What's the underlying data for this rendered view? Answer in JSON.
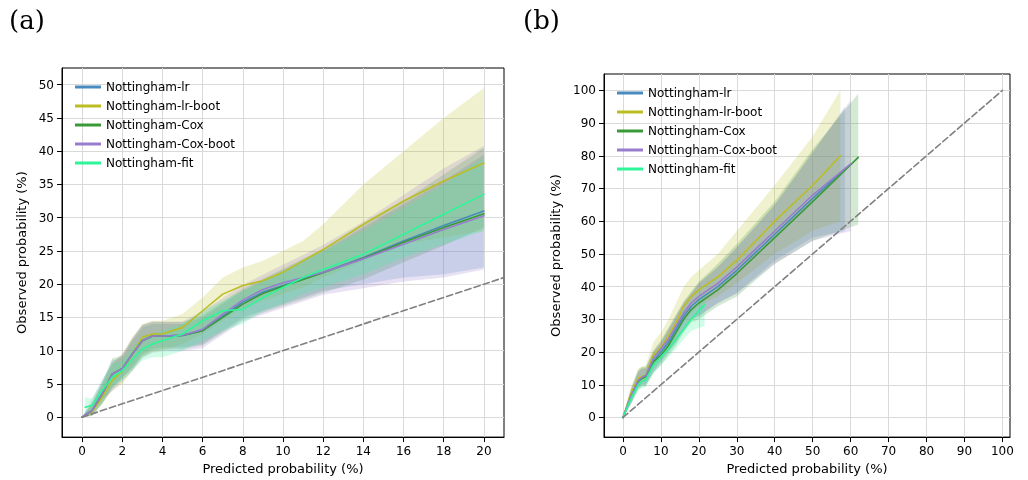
{
  "chart_data": [
    {
      "type": "line",
      "title": "(a)",
      "xlabel": "Predicted probability (%)",
      "ylabel": "Observed probability (%)",
      "xlim": [
        -1,
        21
      ],
      "ylim": [
        -3,
        52.5
      ],
      "xticks": [
        0,
        2,
        4,
        6,
        8,
        10,
        12,
        14,
        16,
        18,
        20
      ],
      "yticks": [
        0,
        5,
        10,
        15,
        20,
        25,
        30,
        35,
        40,
        45,
        50
      ],
      "grid": true,
      "legend": "top left",
      "marker": "none",
      "series": [
        {
          "name": "Nottingham-lr",
          "color": "#4a8bbf",
          "x": [
            0,
            0.5,
            1,
            1.5,
            2,
            2.5,
            3,
            3.5,
            4,
            5,
            6,
            7,
            8,
            9,
            10,
            11,
            12,
            14,
            16,
            18,
            20
          ],
          "values": [
            0,
            1,
            3.5,
            6.5,
            7.3,
            9.5,
            11.5,
            12.2,
            12.2,
            12.3,
            13,
            15.2,
            17.3,
            18.8,
            19.8,
            20.8,
            21.8,
            24,
            26.5,
            28.8,
            31
          ],
          "lower": [
            0,
            0.2,
            2,
            4.5,
            6,
            7.5,
            9.5,
            10.3,
            10.5,
            10.5,
            11,
            13,
            15,
            16,
            17,
            18,
            19,
            20,
            21,
            21.5,
            22.5
          ],
          "upper": [
            0,
            2,
            5,
            8.5,
            9,
            11.5,
            13.5,
            14,
            14,
            14,
            15,
            17,
            19,
            20.5,
            22,
            23.5,
            25,
            28.5,
            32,
            35.5,
            39.5
          ]
        },
        {
          "name": "Nottingham-lr-boot",
          "color": "#bcbd22",
          "x": [
            0,
            0.5,
            1,
            1.5,
            2,
            2.5,
            3,
            3.5,
            4,
            5,
            6,
            7,
            8,
            9,
            10,
            11,
            12,
            14,
            16,
            18,
            20
          ],
          "values": [
            0,
            0.8,
            3,
            5.5,
            7,
            9.5,
            12,
            12.5,
            12.5,
            13.5,
            16,
            18.5,
            19.8,
            20.5,
            21.8,
            23.5,
            25.2,
            29,
            32.5,
            35.5,
            38.2
          ],
          "lower": [
            0,
            0.2,
            2,
            4,
            5,
            7,
            9,
            9.8,
            10,
            11,
            12.5,
            14.5,
            16.5,
            17.5,
            18.5,
            19.5,
            21,
            23.5,
            26,
            27,
            28
          ],
          "upper": [
            0,
            2,
            5,
            8,
            9.5,
            12,
            14,
            14.5,
            14.5,
            15.5,
            18,
            21,
            22.5,
            23.5,
            25,
            26.5,
            29,
            35,
            40,
            45,
            49.5
          ]
        },
        {
          "name": "Nottingham-Cox",
          "color": "#3a9a3a",
          "x": [
            0,
            0.5,
            1,
            1.5,
            2,
            2.5,
            3,
            3.5,
            4,
            5,
            6,
            7,
            8,
            9,
            10,
            11,
            12,
            14,
            16,
            18,
            20
          ],
          "values": [
            0,
            1,
            3.5,
            6.5,
            7.3,
            9.5,
            11.5,
            12.2,
            12.2,
            12.3,
            13,
            15,
            17,
            18.6,
            19.7,
            20.7,
            21.7,
            23.9,
            26.3,
            28.5,
            30.6
          ],
          "lower": [
            0,
            0.2,
            2,
            4.3,
            5.8,
            7.3,
            9.2,
            10,
            10.2,
            10.2,
            10.8,
            12.7,
            14.7,
            15.7,
            16.7,
            17.7,
            18.7,
            20.7,
            23.3,
            25.8,
            28.5
          ],
          "upper": [
            0,
            2.2,
            5.3,
            8.8,
            9.3,
            11.8,
            13.8,
            14.3,
            14.3,
            14.3,
            15.3,
            17.3,
            19.3,
            20.8,
            22.3,
            23.8,
            25.3,
            28.8,
            32.5,
            36.5,
            40.5
          ]
        },
        {
          "name": "Nottingham-Cox-boot",
          "color": "#9a7ccf",
          "x": [
            0,
            0.5,
            1,
            1.5,
            2,
            2.5,
            3,
            3.5,
            4,
            5,
            6,
            7,
            8,
            9,
            10,
            11,
            12,
            14,
            16,
            18,
            20
          ],
          "values": [
            0,
            1,
            3.5,
            6.5,
            7.3,
            9.5,
            11.5,
            12.2,
            12.2,
            12.3,
            13.2,
            15.5,
            17.6,
            19.2,
            20.2,
            21,
            21.8,
            23.8,
            26,
            28.2,
            30.3
          ],
          "lower": [
            0,
            0.9,
            2.6,
            3.9,
            5.4,
            6.9,
            8.9,
            9.7,
            9.9,
            9.9,
            10.4,
            12.4,
            14.4,
            15.4,
            16.4,
            17.4,
            18.4,
            19.4,
            20.4,
            21,
            22.2
          ],
          "upper": [
            0,
            2.8,
            5.6,
            8.1,
            9.4,
            11.9,
            13.9,
            14.4,
            14.4,
            14.4,
            15.9,
            17.9,
            19.9,
            21.4,
            22.9,
            24.4,
            25.9,
            29.4,
            33.4,
            37.4,
            40.8
          ]
        },
        {
          "name": "Nottingham-fit",
          "color": "#2ef598",
          "x": [
            0.15,
            0.5,
            1,
            1.5,
            2,
            2.5,
            3,
            3.5,
            4,
            5,
            6,
            7,
            8,
            9,
            10,
            11,
            12,
            14,
            16,
            18,
            20
          ],
          "values": [
            1.5,
            1.8,
            4,
            6,
            7,
            8.7,
            10.2,
            11,
            11.5,
            12.5,
            14.5,
            16,
            16.2,
            18,
            19.5,
            21,
            22.2,
            24.5,
            27.5,
            30.5,
            33.5
          ],
          "lower": [
            0.5,
            0.8,
            2.5,
            4.5,
            5.5,
            7,
            8.5,
            9,
            9,
            10,
            11.5,
            13,
            14,
            16,
            17,
            18.5,
            19.5,
            21.5,
            24,
            26,
            28
          ],
          "upper": [
            3,
            2.8,
            5.5,
            8,
            8.5,
            10.5,
            12,
            12.5,
            13,
            14,
            16,
            17.5,
            19,
            20.5,
            22,
            23.5,
            25,
            28,
            31.5,
            35,
            39
          ]
        },
        {
          "color": "#808080",
          "line_style": "dashed",
          "x": [
            0,
            21
          ],
          "values": [
            0,
            21
          ]
        }
      ]
    },
    {
      "type": "line",
      "title": "(b)",
      "xlabel": "Predicted probability (%)",
      "ylabel": "Observed probability (%)",
      "xlim": [
        -5,
        102
      ],
      "ylim": [
        -6,
        105
      ],
      "xticks": [
        0,
        10,
        20,
        30,
        40,
        50,
        60,
        70,
        80,
        90,
        100
      ],
      "yticks": [
        0,
        10,
        20,
        30,
        40,
        50,
        60,
        70,
        80,
        90,
        100
      ],
      "grid": true,
      "legend": "top left",
      "marker": "none",
      "series": [
        {
          "name": "Nottingham-lr",
          "color": "#4a8bbf",
          "x": [
            0,
            2,
            4,
            5,
            6,
            8,
            10,
            12,
            14,
            16,
            18,
            20,
            25,
            30,
            40,
            50,
            58.5
          ],
          "values": [
            0,
            6,
            11,
            12,
            12.5,
            17,
            20,
            23,
            27,
            31,
            34,
            36,
            40,
            45,
            56,
            67,
            76
          ],
          "lower": [
            0,
            4,
            9,
            10,
            10,
            14,
            17,
            20,
            23,
            27,
            30,
            31,
            35,
            38,
            48,
            55,
            57
          ],
          "upper": [
            0,
            8,
            14,
            15,
            15,
            20,
            23,
            27,
            31,
            35,
            38,
            41,
            46,
            52,
            65,
            81,
            95
          ]
        },
        {
          "name": "Nottingham-lr-boot",
          "color": "#bcbd22",
          "x": [
            0,
            2,
            4,
            5,
            6,
            8,
            10,
            12,
            14,
            16,
            18,
            20,
            25,
            30,
            40,
            50,
            57.3
          ],
          "values": [
            0,
            7,
            12,
            12.5,
            13,
            19,
            21.5,
            25,
            29,
            34,
            37,
            39,
            43,
            48,
            60,
            71,
            80
          ],
          "lower": [
            0,
            5,
            10,
            10.5,
            11,
            16,
            18,
            21,
            25,
            29,
            32,
            34,
            37,
            41,
            50,
            57,
            60
          ],
          "upper": [
            0,
            9,
            15,
            15.5,
            16,
            23,
            26,
            30,
            35,
            40,
            43,
            45,
            50,
            57,
            71,
            86,
            100
          ]
        },
        {
          "name": "Nottingham-Cox",
          "color": "#3a9a3a",
          "x": [
            0,
            2,
            4,
            5,
            6,
            8,
            10,
            12,
            14,
            16,
            18,
            20,
            25,
            30,
            40,
            50,
            62
          ],
          "values": [
            0,
            6,
            11,
            12,
            12.5,
            17,
            19,
            22,
            26,
            30,
            33,
            35,
            39,
            44,
            55,
            66,
            79.5
          ],
          "lower": [
            0,
            4,
            8.5,
            9.5,
            9.5,
            13.5,
            16,
            19,
            22,
            26,
            29,
            30,
            34,
            37,
            47,
            54,
            59
          ],
          "upper": [
            0,
            8.5,
            14.5,
            15.5,
            15.5,
            20.5,
            23.5,
            27.5,
            31.5,
            35.5,
            38.5,
            41.5,
            47,
            53,
            66,
            82,
            99
          ]
        },
        {
          "name": "Nottingham-Cox-boot",
          "color": "#9a7ccf",
          "x": [
            0,
            2,
            4,
            5,
            6,
            8,
            10,
            12,
            14,
            16,
            18,
            20,
            25,
            30,
            40,
            50,
            60
          ],
          "values": [
            0,
            6.2,
            11.3,
            12.3,
            12.8,
            18,
            21,
            24,
            28,
            32,
            35,
            37,
            41,
            46,
            57,
            68,
            77.5
          ],
          "lower": [
            0,
            4,
            9,
            10,
            10,
            14,
            17,
            20,
            23,
            27,
            30,
            31,
            35,
            38,
            47,
            54,
            57
          ],
          "upper": [
            0,
            8,
            14,
            15,
            15,
            20,
            23,
            27,
            31,
            35,
            38,
            41,
            46,
            52,
            65,
            81,
            97
          ]
        },
        {
          "name": "Nottingham-fit",
          "color": "#2ef598",
          "x": [
            0,
            2,
            4,
            5,
            6,
            8,
            10,
            12,
            14,
            16,
            18,
            21.5
          ],
          "values": [
            0,
            5.5,
            10,
            11,
            11.5,
            16,
            18.5,
            21,
            24,
            27,
            30,
            34.5
          ],
          "lower": [
            0,
            4,
            8,
            9,
            9.5,
            13.5,
            16,
            18.5,
            21,
            24,
            26.5,
            28
          ],
          "upper": [
            0,
            7,
            12,
            13,
            13.5,
            18.5,
            21,
            23.5,
            27,
            30,
            33,
            38
          ]
        },
        {
          "color": "#808080",
          "line_style": "dashed",
          "x": [
            0,
            100
          ],
          "values": [
            0,
            100
          ]
        }
      ]
    }
  ]
}
